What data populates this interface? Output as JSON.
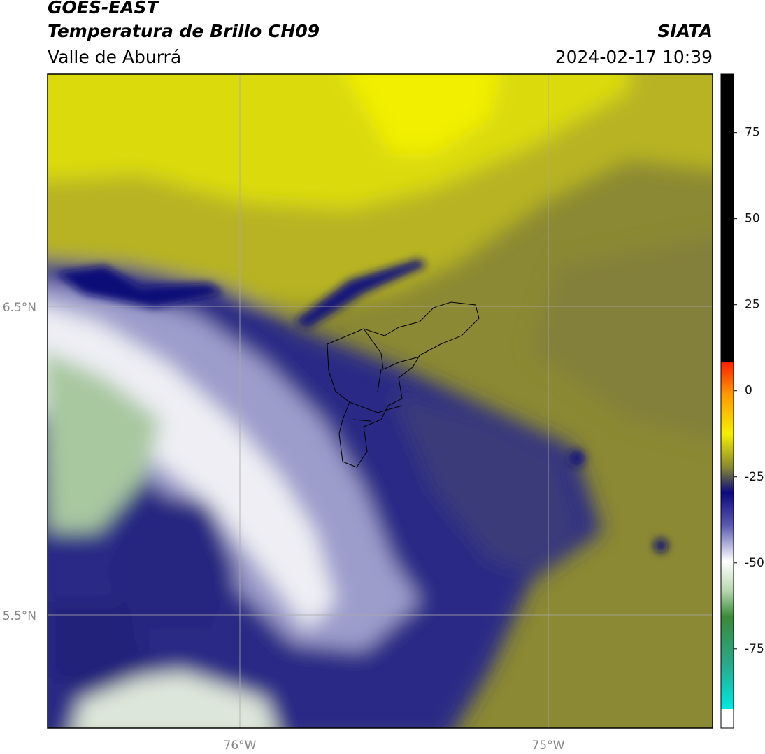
{
  "header": {
    "title": "GOES-EAST",
    "subtitle": "Temperatura de Brillo CH09",
    "source": "SIATA",
    "region": "Valle de Aburrá",
    "datetime": "2024-02-17 10:39"
  },
  "map": {
    "lat_labels": [
      "6.5°N",
      "5.5°N"
    ],
    "lon_labels": [
      "76°W",
      "75°W"
    ]
  },
  "colorbar": {
    "lim": [
      -98,
      92
    ],
    "ticks": [
      75,
      50,
      25,
      0,
      -25,
      -50,
      -75
    ]
  }
}
